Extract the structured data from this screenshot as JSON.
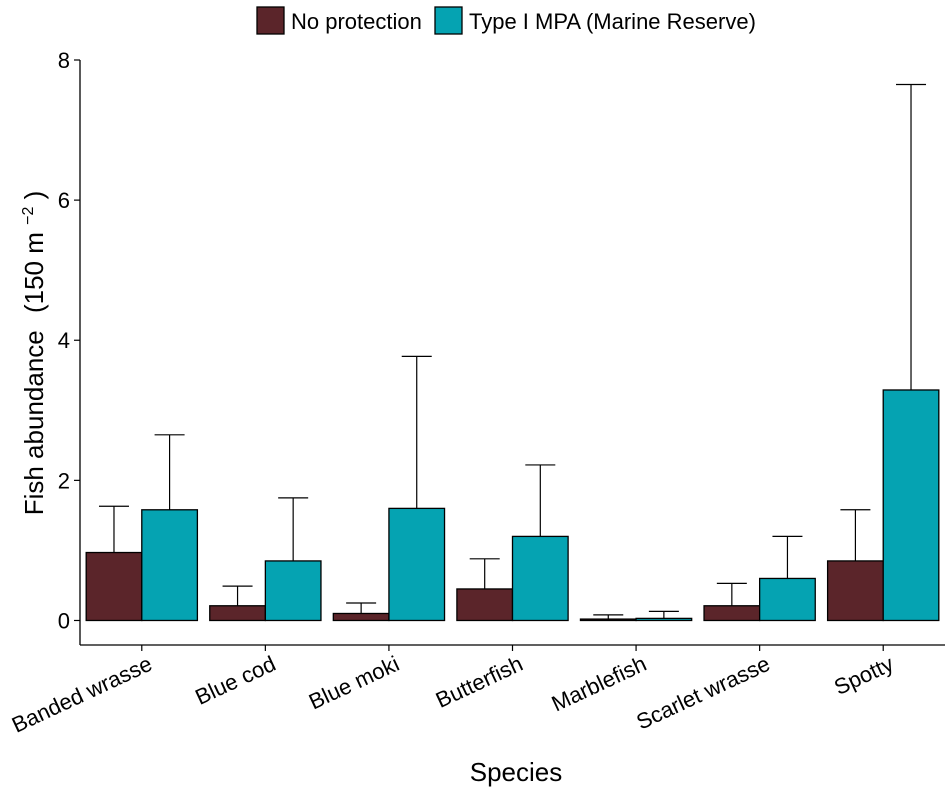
{
  "chart_data": {
    "type": "bar",
    "title": "",
    "xlabel": "Species",
    "ylabel": "Fish abundance",
    "ylabel_unit": "(150 m",
    "ylabel_exp": "−2",
    "ylabel_close": ")",
    "ylim": [
      -0.35,
      8
    ],
    "yticks": [
      "0",
      "2",
      "4",
      "6",
      "8"
    ],
    "legend_position": "top",
    "categories": [
      "Banded wrasse",
      "Blue cod",
      "Blue moki",
      "Butterfish",
      "Marblefish",
      "Scarlet wrasse",
      "Spotty"
    ],
    "series": [
      {
        "name": "No protection",
        "color": "#5b252a",
        "values": [
          0.97,
          0.21,
          0.1,
          0.45,
          0.02,
          0.21,
          0.85
        ],
        "error_upper": [
          1.63,
          0.49,
          0.25,
          0.88,
          0.08,
          0.53,
          1.58
        ]
      },
      {
        "name": "Type I MPA (Marine Reserve)",
        "color": "#05a3b2",
        "values": [
          1.58,
          0.85,
          1.6,
          1.2,
          0.03,
          0.6,
          3.29
        ],
        "error_upper": [
          2.65,
          1.75,
          3.77,
          2.22,
          0.13,
          1.2,
          7.65
        ]
      }
    ]
  }
}
